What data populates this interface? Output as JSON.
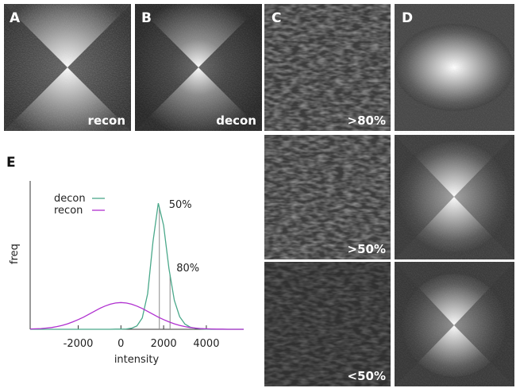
{
  "panels": [
    {
      "label": "A",
      "caption": "recon"
    },
    {
      "label": "B",
      "caption": "decon"
    },
    {
      "label": "C",
      "captions": [
        ">80%",
        ">50%",
        "<50%"
      ]
    },
    {
      "label": "D"
    },
    {
      "label": "E"
    }
  ],
  "chart_data": {
    "type": "line",
    "xlabel": "intensity",
    "ylabel": "freq",
    "x": [
      -4250,
      -4000,
      -3750,
      -3500,
      -3250,
      -3000,
      -2750,
      -2500,
      -2250,
      -2000,
      -1750,
      -1500,
      -1250,
      -1000,
      -750,
      -500,
      -250,
      0,
      250,
      500,
      750,
      1000,
      1250,
      1500,
      1750,
      2000,
      2250,
      2500,
      2750,
      3000,
      3250,
      3500,
      3750,
      4000,
      4250,
      4500,
      4750,
      5000,
      5250,
      5500,
      5750
    ],
    "series": [
      {
        "name": "decon",
        "color": "#4aa88a",
        "values": [
          0,
          0,
          0,
          0,
          0,
          0,
          0,
          0,
          0,
          0,
          0,
          0,
          0,
          0,
          0,
          0,
          0.001,
          0.001,
          0.002,
          0.007,
          0.023,
          0.076,
          0.24,
          0.59,
          0.85,
          0.7,
          0.41,
          0.195,
          0.085,
          0.035,
          0.014,
          0.006,
          0.0025,
          0.001,
          0,
          0,
          0,
          0,
          0,
          0,
          0
        ]
      },
      {
        "name": "recon",
        "color": "#b030d0",
        "values": [
          0.002,
          0.003,
          0.005,
          0.008,
          0.012,
          0.018,
          0.026,
          0.037,
          0.05,
          0.065,
          0.082,
          0.101,
          0.121,
          0.14,
          0.156,
          0.169,
          0.177,
          0.18,
          0.177,
          0.169,
          0.156,
          0.14,
          0.121,
          0.101,
          0.082,
          0.065,
          0.05,
          0.037,
          0.026,
          0.018,
          0.012,
          0.008,
          0.005,
          0.003,
          0.002,
          0.001,
          0.001,
          0,
          0,
          0,
          0
        ]
      }
    ],
    "thresholds": [
      {
        "value": 1800,
        "label": "50%"
      },
      {
        "value": 2300,
        "label": "80%"
      }
    ],
    "xlim": [
      -4250,
      5750
    ],
    "xticks": [
      -2000,
      0,
      2000,
      4000
    ],
    "ylim": [
      0,
      1
    ],
    "legend": "upper-left"
  }
}
